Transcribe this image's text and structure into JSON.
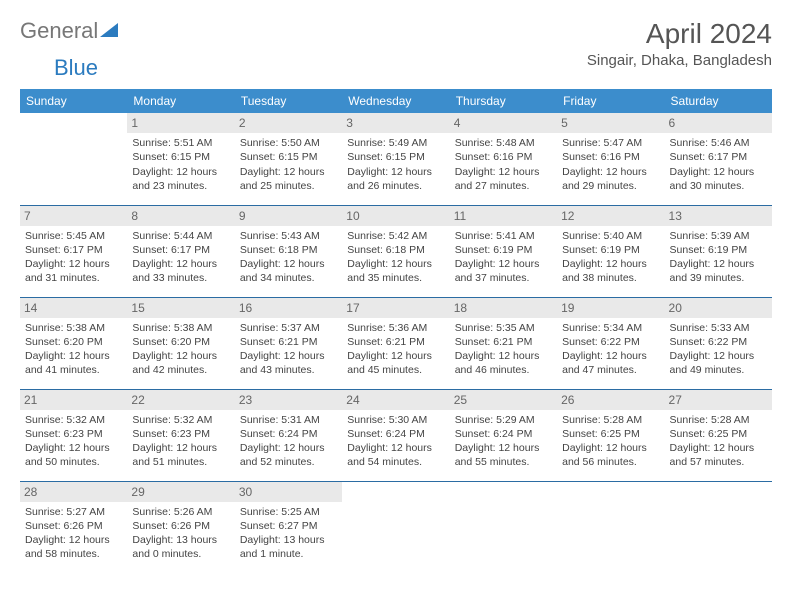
{
  "logo": {
    "text1": "General",
    "text2": "Blue"
  },
  "title": "April 2024",
  "location": "Singair, Dhaka, Bangladesh",
  "colors": {
    "header_bg": "#3c8dcc",
    "header_text": "#ffffff",
    "row_border": "#2b6ca3",
    "daynum_bg": "#e9e9e9",
    "logo_accent": "#2b7bbf"
  },
  "day_headers": [
    "Sunday",
    "Monday",
    "Tuesday",
    "Wednesday",
    "Thursday",
    "Friday",
    "Saturday"
  ],
  "first_weekday_offset": 1,
  "days": [
    {
      "n": 1,
      "sunrise": "5:51 AM",
      "sunset": "6:15 PM",
      "daylight": "12 hours and 23 minutes."
    },
    {
      "n": 2,
      "sunrise": "5:50 AM",
      "sunset": "6:15 PM",
      "daylight": "12 hours and 25 minutes."
    },
    {
      "n": 3,
      "sunrise": "5:49 AM",
      "sunset": "6:15 PM",
      "daylight": "12 hours and 26 minutes."
    },
    {
      "n": 4,
      "sunrise": "5:48 AM",
      "sunset": "6:16 PM",
      "daylight": "12 hours and 27 minutes."
    },
    {
      "n": 5,
      "sunrise": "5:47 AM",
      "sunset": "6:16 PM",
      "daylight": "12 hours and 29 minutes."
    },
    {
      "n": 6,
      "sunrise": "5:46 AM",
      "sunset": "6:17 PM",
      "daylight": "12 hours and 30 minutes."
    },
    {
      "n": 7,
      "sunrise": "5:45 AM",
      "sunset": "6:17 PM",
      "daylight": "12 hours and 31 minutes."
    },
    {
      "n": 8,
      "sunrise": "5:44 AM",
      "sunset": "6:17 PM",
      "daylight": "12 hours and 33 minutes."
    },
    {
      "n": 9,
      "sunrise": "5:43 AM",
      "sunset": "6:18 PM",
      "daylight": "12 hours and 34 minutes."
    },
    {
      "n": 10,
      "sunrise": "5:42 AM",
      "sunset": "6:18 PM",
      "daylight": "12 hours and 35 minutes."
    },
    {
      "n": 11,
      "sunrise": "5:41 AM",
      "sunset": "6:19 PM",
      "daylight": "12 hours and 37 minutes."
    },
    {
      "n": 12,
      "sunrise": "5:40 AM",
      "sunset": "6:19 PM",
      "daylight": "12 hours and 38 minutes."
    },
    {
      "n": 13,
      "sunrise": "5:39 AM",
      "sunset": "6:19 PM",
      "daylight": "12 hours and 39 minutes."
    },
    {
      "n": 14,
      "sunrise": "5:38 AM",
      "sunset": "6:20 PM",
      "daylight": "12 hours and 41 minutes."
    },
    {
      "n": 15,
      "sunrise": "5:38 AM",
      "sunset": "6:20 PM",
      "daylight": "12 hours and 42 minutes."
    },
    {
      "n": 16,
      "sunrise": "5:37 AM",
      "sunset": "6:21 PM",
      "daylight": "12 hours and 43 minutes."
    },
    {
      "n": 17,
      "sunrise": "5:36 AM",
      "sunset": "6:21 PM",
      "daylight": "12 hours and 45 minutes."
    },
    {
      "n": 18,
      "sunrise": "5:35 AM",
      "sunset": "6:21 PM",
      "daylight": "12 hours and 46 minutes."
    },
    {
      "n": 19,
      "sunrise": "5:34 AM",
      "sunset": "6:22 PM",
      "daylight": "12 hours and 47 minutes."
    },
    {
      "n": 20,
      "sunrise": "5:33 AM",
      "sunset": "6:22 PM",
      "daylight": "12 hours and 49 minutes."
    },
    {
      "n": 21,
      "sunrise": "5:32 AM",
      "sunset": "6:23 PM",
      "daylight": "12 hours and 50 minutes."
    },
    {
      "n": 22,
      "sunrise": "5:32 AM",
      "sunset": "6:23 PM",
      "daylight": "12 hours and 51 minutes."
    },
    {
      "n": 23,
      "sunrise": "5:31 AM",
      "sunset": "6:24 PM",
      "daylight": "12 hours and 52 minutes."
    },
    {
      "n": 24,
      "sunrise": "5:30 AM",
      "sunset": "6:24 PM",
      "daylight": "12 hours and 54 minutes."
    },
    {
      "n": 25,
      "sunrise": "5:29 AM",
      "sunset": "6:24 PM",
      "daylight": "12 hours and 55 minutes."
    },
    {
      "n": 26,
      "sunrise": "5:28 AM",
      "sunset": "6:25 PM",
      "daylight": "12 hours and 56 minutes."
    },
    {
      "n": 27,
      "sunrise": "5:28 AM",
      "sunset": "6:25 PM",
      "daylight": "12 hours and 57 minutes."
    },
    {
      "n": 28,
      "sunrise": "5:27 AM",
      "sunset": "6:26 PM",
      "daylight": "12 hours and 58 minutes."
    },
    {
      "n": 29,
      "sunrise": "5:26 AM",
      "sunset": "6:26 PM",
      "daylight": "13 hours and 0 minutes."
    },
    {
      "n": 30,
      "sunrise": "5:25 AM",
      "sunset": "6:27 PM",
      "daylight": "13 hours and 1 minute."
    }
  ],
  "labels": {
    "sunrise": "Sunrise:",
    "sunset": "Sunset:",
    "daylight": "Daylight:"
  }
}
